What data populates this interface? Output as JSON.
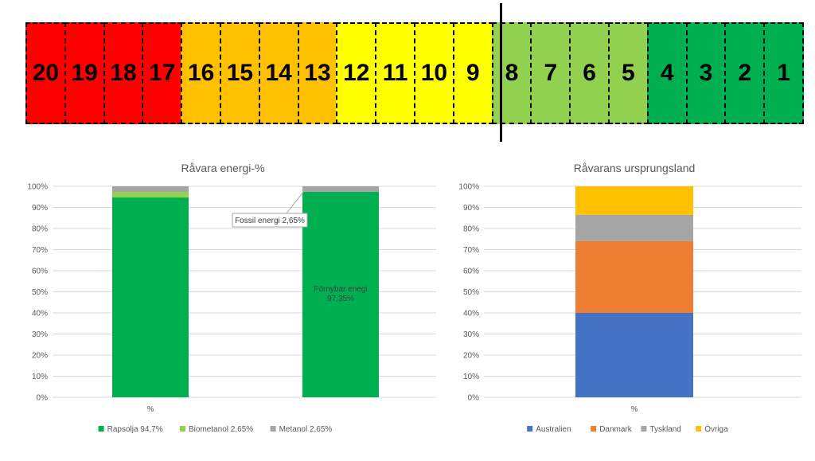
{
  "scale": {
    "cells": [
      {
        "label": "20",
        "color": "#ff0000"
      },
      {
        "label": "19",
        "color": "#ff0000"
      },
      {
        "label": "18",
        "color": "#ff0000"
      },
      {
        "label": "17",
        "color": "#ff0000"
      },
      {
        "label": "16",
        "color": "#ffc000"
      },
      {
        "label": "15",
        "color": "#ffc000"
      },
      {
        "label": "14",
        "color": "#ffc000"
      },
      {
        "label": "13",
        "color": "#ffc000"
      },
      {
        "label": "12",
        "color": "#ffff00"
      },
      {
        "label": "11",
        "color": "#ffff00"
      },
      {
        "label": "10",
        "color": "#ffff00"
      },
      {
        "label": "9",
        "color": "#ffff00"
      },
      {
        "label": "8",
        "color": "#92d050"
      },
      {
        "label": "7",
        "color": "#92d050"
      },
      {
        "label": "6",
        "color": "#92d050"
      },
      {
        "label": "5",
        "color": "#92d050"
      },
      {
        "label": "4",
        "color": "#00b050"
      },
      {
        "label": "3",
        "color": "#00b050"
      },
      {
        "label": "2",
        "color": "#00b050"
      },
      {
        "label": "1",
        "color": "#00b050"
      }
    ],
    "marker_value": 7.75
  },
  "chart_data": [
    {
      "type": "bar",
      "stacked": true,
      "title": "Råvara energi-%",
      "categories": [
        "%",
        ""
      ],
      "yticks": [
        "0%",
        "10%",
        "20%",
        "30%",
        "40%",
        "50%",
        "60%",
        "70%",
        "80%",
        "90%",
        "100%"
      ],
      "ylim": [
        0,
        100
      ],
      "series": [
        {
          "name": "Rapsolja 94,7%",
          "color": "#00b050",
          "values": [
            94.7,
            null
          ]
        },
        {
          "name": "Biometanol 2,65%",
          "color": "#92d050",
          "values": [
            2.65,
            null
          ]
        },
        {
          "name": "Metanol 2,65%",
          "color": "#a5a5a5",
          "values": [
            2.65,
            null
          ]
        }
      ],
      "bar2_segments": [
        {
          "value": 97.35,
          "color": "#00b050",
          "label": "Förnybar enegi 97,35%"
        },
        {
          "value": 2.65,
          "color": "#a5a5a5",
          "label": "Fossil energi 2,65%"
        }
      ],
      "legend": "bottom"
    },
    {
      "type": "bar",
      "stacked": true,
      "title": "Råvarans ursprungsland",
      "categories": [
        "%"
      ],
      "yticks": [
        "0%",
        "10%",
        "20%",
        "30%",
        "40%",
        "50%",
        "60%",
        "70%",
        "80%",
        "90%",
        "100%"
      ],
      "ylim": [
        0,
        100
      ],
      "series": [
        {
          "name": "Australien",
          "color": "#4472c4",
          "values": [
            40
          ]
        },
        {
          "name": "Danmark",
          "color": "#ed7d31",
          "values": [
            34
          ]
        },
        {
          "name": "Tyskland",
          "color": "#a5a5a5",
          "values": [
            12.5
          ]
        },
        {
          "name": "Övriga",
          "color": "#ffc000",
          "values": [
            13.5
          ]
        }
      ],
      "legend": "bottom"
    }
  ]
}
